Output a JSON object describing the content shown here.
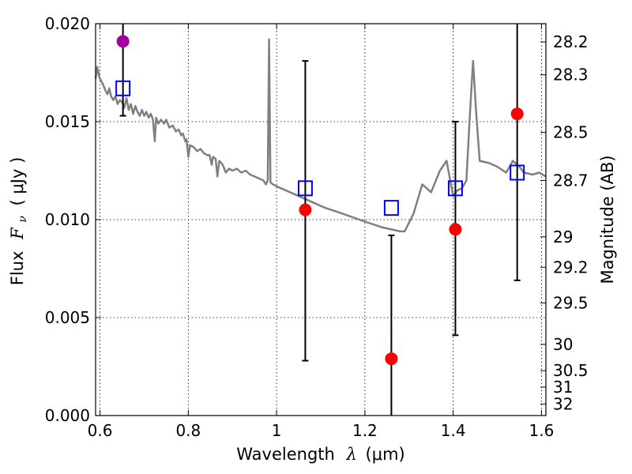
{
  "chart_data": {
    "type": "scatter",
    "xlabel_prefix": "Wavelength",
    "xlabel_symbol": "λ",
    "xlabel_unit": "(μm)",
    "ylabel_prefix": "Flux",
    "ylabel_symbol": "F",
    "ylabel_subscript": "ν",
    "ylabel_unit": "( μJy )",
    "y2label": "Magnitude (AB)",
    "xlim": [
      0.59,
      1.61
    ],
    "ylim": [
      0.0,
      0.02
    ],
    "xticks": [
      0.6,
      0.8,
      1.0,
      1.2,
      1.4,
      1.6
    ],
    "xtick_labels": [
      "0.6",
      "0.8",
      "1",
      "1.2",
      "1.4",
      "1.6"
    ],
    "yticks": [
      0.0,
      0.005,
      0.01,
      0.015,
      0.02
    ],
    "ytick_labels": [
      "0.000",
      "0.005",
      "0.010",
      "0.015",
      "0.020"
    ],
    "y2ticks": [
      {
        "flux": 0.01907,
        "label": "28.2"
      },
      {
        "flux": 0.01739,
        "label": "28.3"
      },
      {
        "flux": 0.01445,
        "label": "28.5"
      },
      {
        "flux": 0.012,
        "label": "28.7"
      },
      {
        "flux": 0.00912,
        "label": "29"
      },
      {
        "flux": 0.00757,
        "label": "29.2"
      },
      {
        "flux": 0.00575,
        "label": "29.5"
      },
      {
        "flux": 0.00363,
        "label": "30"
      },
      {
        "flux": 0.00229,
        "label": "30.5"
      },
      {
        "flux": 0.00145,
        "label": "31"
      },
      {
        "flux": 0.00058,
        "label": "32"
      }
    ],
    "grid": true,
    "colors": {
      "model": "#808080",
      "observed": "#ff0000",
      "optical": "#a000a0",
      "synthetic": "#0000ff",
      "errorbar": "#000000"
    },
    "series": [
      {
        "kind": "line",
        "points": [
          [
            0.59,
            0.0172
          ],
          [
            0.594,
            0.0178
          ],
          [
            0.598,
            0.0173
          ],
          [
            0.602,
            0.0171
          ],
          [
            0.607,
            0.0169
          ],
          [
            0.612,
            0.0166
          ],
          [
            0.617,
            0.0164
          ],
          [
            0.621,
            0.0167
          ],
          [
            0.625,
            0.0163
          ],
          [
            0.63,
            0.0161
          ],
          [
            0.635,
            0.0163
          ],
          [
            0.64,
            0.0159
          ],
          [
            0.645,
            0.0161
          ],
          [
            0.65,
            0.016
          ],
          [
            0.655,
            0.0157
          ],
          [
            0.66,
            0.0162
          ],
          [
            0.665,
            0.0156
          ],
          [
            0.67,
            0.0159
          ],
          [
            0.675,
            0.0154
          ],
          [
            0.68,
            0.0158
          ],
          [
            0.685,
            0.0155
          ],
          [
            0.69,
            0.0153
          ],
          [
            0.695,
            0.0156
          ],
          [
            0.7,
            0.0153
          ],
          [
            0.705,
            0.0155
          ],
          [
            0.71,
            0.0152
          ],
          [
            0.715,
            0.0154
          ],
          [
            0.72,
            0.0151
          ],
          [
            0.724,
            0.014
          ],
          [
            0.727,
            0.0152
          ],
          [
            0.732,
            0.0149
          ],
          [
            0.738,
            0.0151
          ],
          [
            0.745,
            0.0149
          ],
          [
            0.75,
            0.0151
          ],
          [
            0.757,
            0.0147
          ],
          [
            0.765,
            0.0148
          ],
          [
            0.772,
            0.0145
          ],
          [
            0.778,
            0.0146
          ],
          [
            0.784,
            0.0143
          ],
          [
            0.788,
            0.0144
          ],
          [
            0.793,
            0.014
          ],
          [
            0.796,
            0.0141
          ],
          [
            0.8,
            0.0132
          ],
          [
            0.804,
            0.0138
          ],
          [
            0.812,
            0.0137
          ],
          [
            0.82,
            0.0135
          ],
          [
            0.828,
            0.0136
          ],
          [
            0.835,
            0.0134
          ],
          [
            0.842,
            0.0133
          ],
          [
            0.848,
            0.0133
          ],
          [
            0.853,
            0.0128
          ],
          [
            0.856,
            0.0132
          ],
          [
            0.862,
            0.0131
          ],
          [
            0.866,
            0.0122
          ],
          [
            0.87,
            0.013
          ],
          [
            0.878,
            0.0128
          ],
          [
            0.885,
            0.0124
          ],
          [
            0.892,
            0.0126
          ],
          [
            0.9,
            0.0125
          ],
          [
            0.91,
            0.0126
          ],
          [
            0.92,
            0.0124
          ],
          [
            0.93,
            0.0125
          ],
          [
            0.94,
            0.0123
          ],
          [
            0.95,
            0.0122
          ],
          [
            0.96,
            0.0121
          ],
          [
            0.97,
            0.012
          ],
          [
            0.976,
            0.0118
          ],
          [
            0.98,
            0.012
          ],
          [
            0.983,
            0.0192
          ],
          [
            0.986,
            0.0119
          ],
          [
            0.992,
            0.0118
          ],
          [
            1.0,
            0.0117
          ],
          [
            1.02,
            0.0115
          ],
          [
            1.05,
            0.0112
          ],
          [
            1.08,
            0.0109
          ],
          [
            1.11,
            0.0106
          ],
          [
            1.15,
            0.0103
          ],
          [
            1.2,
            0.0099
          ],
          [
            1.24,
            0.0096
          ],
          [
            1.26,
            0.0095
          ],
          [
            1.28,
            0.0094
          ],
          [
            1.29,
            0.0094
          ],
          [
            1.31,
            0.0103
          ],
          [
            1.33,
            0.0118
          ],
          [
            1.35,
            0.0114
          ],
          [
            1.37,
            0.0125
          ],
          [
            1.385,
            0.013
          ],
          [
            1.4,
            0.0112
          ],
          [
            1.41,
            0.0115
          ],
          [
            1.42,
            0.0116
          ],
          [
            1.43,
            0.012
          ],
          [
            1.437,
            0.015
          ],
          [
            1.445,
            0.0181
          ],
          [
            1.452,
            0.0155
          ],
          [
            1.46,
            0.013
          ],
          [
            1.48,
            0.0129
          ],
          [
            1.5,
            0.0127
          ],
          [
            1.52,
            0.0124
          ],
          [
            1.535,
            0.013
          ],
          [
            1.55,
            0.0127
          ],
          [
            1.56,
            0.0124
          ],
          [
            1.58,
            0.0123
          ],
          [
            1.595,
            0.0124
          ],
          [
            1.61,
            0.0122
          ]
        ]
      },
      {
        "kind": "markers",
        "marker": "circle",
        "color": "#a000a0",
        "points": [
          {
            "x": 0.652,
            "y": 0.0191
          }
        ]
      },
      {
        "kind": "markers",
        "marker": "circle",
        "color": "#ff0000",
        "points": [
          {
            "x": 1.065,
            "y": 0.0105,
            "ylow": 0.0028,
            "yhigh": 0.0181
          },
          {
            "x": 1.26,
            "y": 0.0029,
            "ylow": 0.0,
            "yhigh": 0.0092
          },
          {
            "x": 1.405,
            "y": 0.0095,
            "ylow": 0.0041,
            "yhigh": 0.015
          },
          {
            "x": 1.545,
            "y": 0.0154,
            "ylow": 0.0069,
            "yhigh": 0.02
          }
        ]
      },
      {
        "kind": "errorbar",
        "points": [
          {
            "x": 0.652,
            "ylow": 0.0153,
            "yhigh": 0.02
          }
        ]
      },
      {
        "kind": "markers",
        "marker": "square",
        "color": "#0000ff",
        "points": [
          {
            "x": 0.652,
            "y": 0.0167
          },
          {
            "x": 1.065,
            "y": 0.0116
          },
          {
            "x": 1.26,
            "y": 0.0106
          },
          {
            "x": 1.405,
            "y": 0.0116
          },
          {
            "x": 1.545,
            "y": 0.0124
          }
        ]
      }
    ]
  }
}
